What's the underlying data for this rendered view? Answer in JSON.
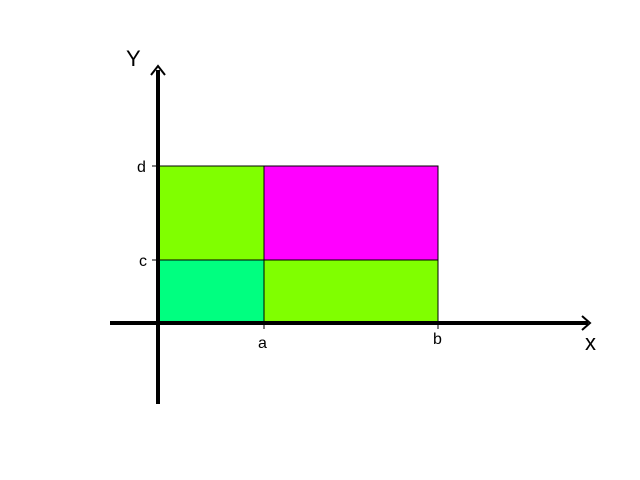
{
  "diagram": {
    "axes": {
      "x_name": "x",
      "y_name": "Y"
    },
    "ticks": {
      "x": [
        "a",
        "b"
      ],
      "y": [
        "c",
        "d"
      ]
    },
    "colors": {
      "background": "#ffffff",
      "axis": "#000000",
      "region_lower_left": "#00ff80",
      "region_upper_left": "#80ff00",
      "region_lower_right": "#80ff00",
      "region_upper_right": "#ff00ff",
      "region_border": "#000000"
    }
  }
}
